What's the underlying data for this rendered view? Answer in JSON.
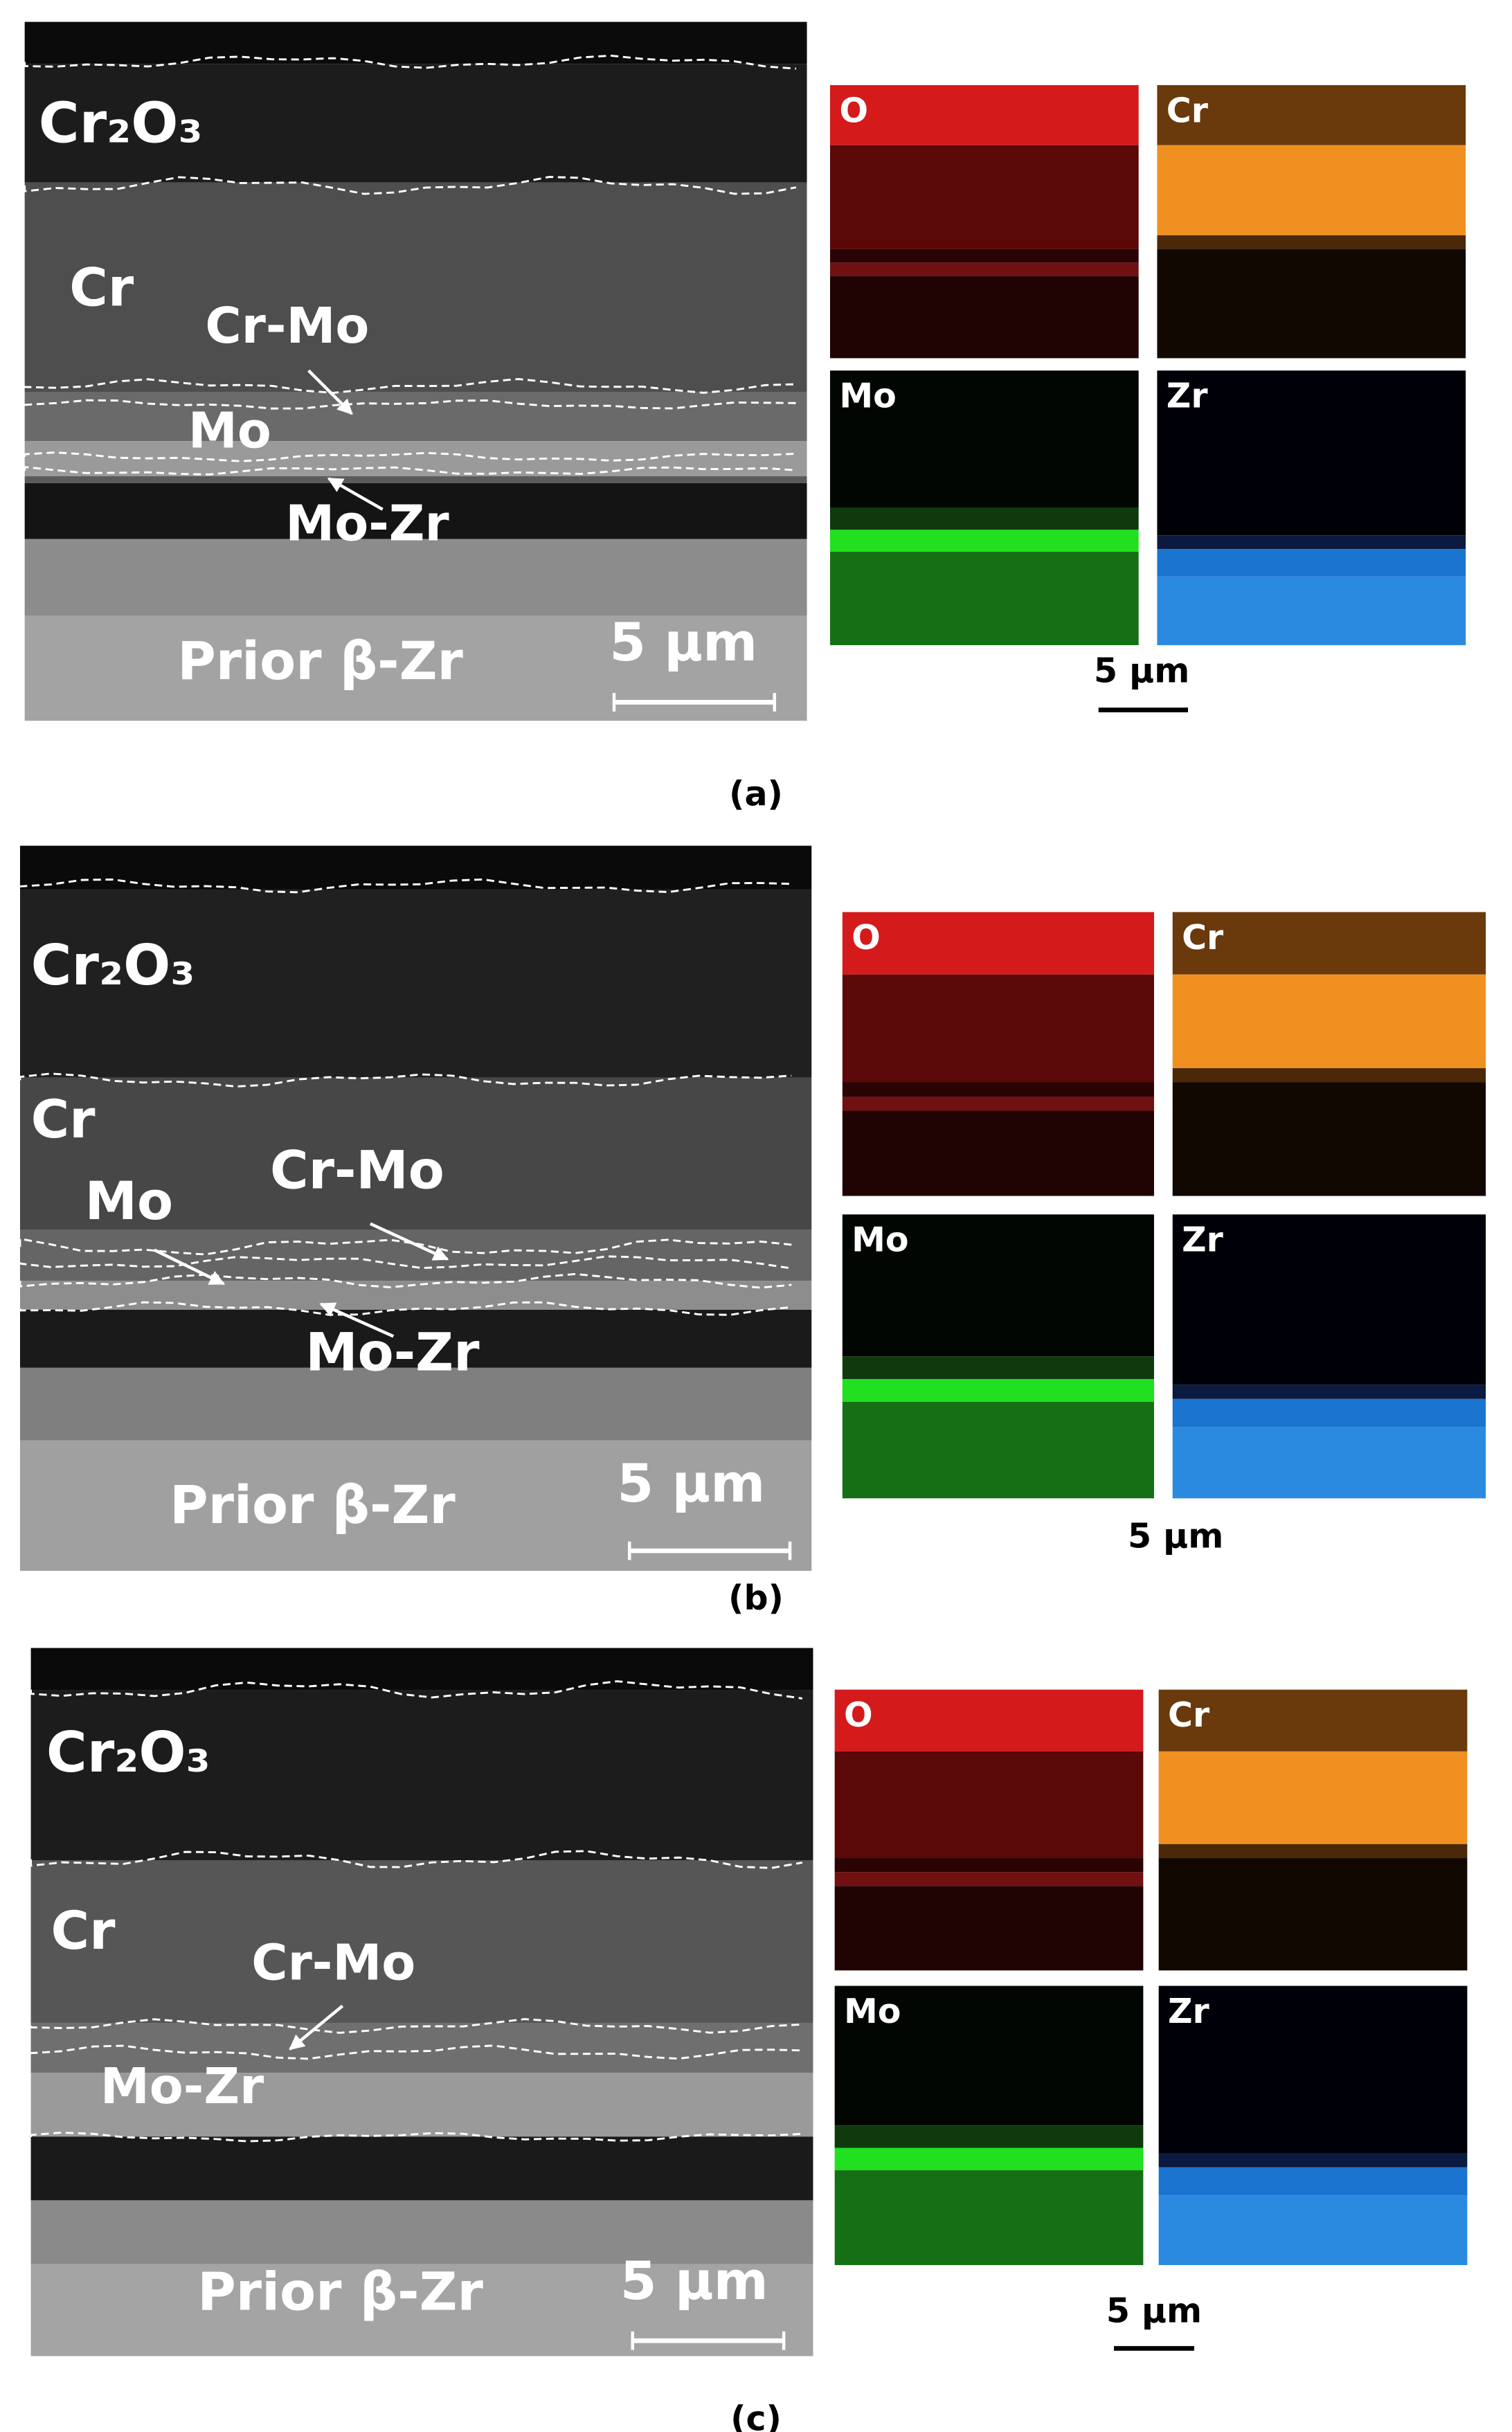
{
  "panels": [
    {
      "label": "(a)",
      "sem_labels": [
        "Cr₂O₃",
        "Cr",
        "Cr-Mo",
        "Mo",
        "Mo-Zr",
        "Prior β-Zr"
      ],
      "sem_scale": "5 µm",
      "maps": [
        "O",
        "Cr",
        "Mo",
        "Zr"
      ],
      "map_scale": "5 µm"
    },
    {
      "label": "(b)",
      "sem_labels": [
        "Cr₂O₃",
        "Cr",
        "Mo",
        "Cr-Mo",
        "Mo-Zr",
        "Prior β-Zr"
      ],
      "sem_scale": "5 µm",
      "maps": [
        "O",
        "Cr",
        "Mo",
        "Zr"
      ],
      "map_scale": "5 µm"
    },
    {
      "label": "(c)",
      "sem_labels": [
        "Cr₂O₃",
        "Cr",
        "Cr-Mo",
        "Mo-Zr",
        "Prior β-Zr"
      ],
      "sem_scale": "5 µm",
      "maps": [
        "O",
        "Cr",
        "Mo",
        "Zr"
      ],
      "map_scale": "5 µm"
    }
  ]
}
